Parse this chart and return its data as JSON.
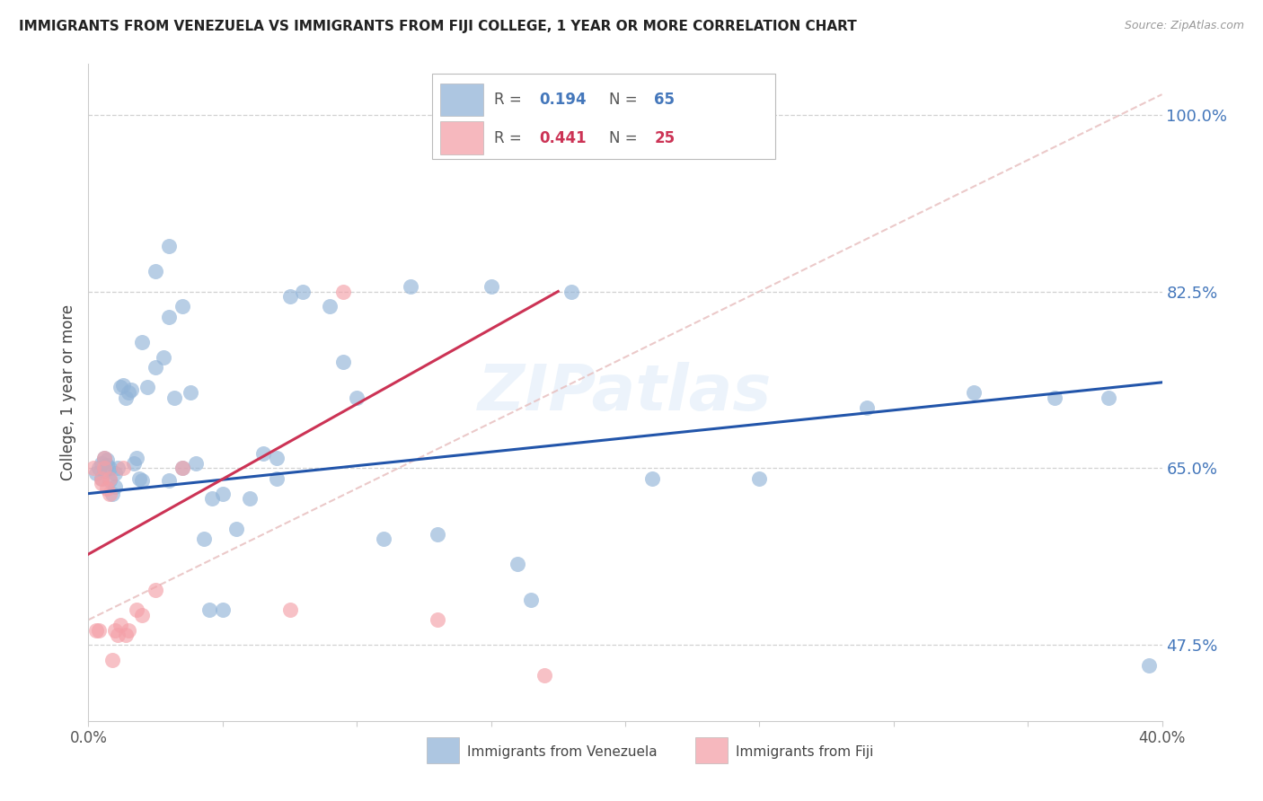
{
  "title": "IMMIGRANTS FROM VENEZUELA VS IMMIGRANTS FROM FIJI COLLEGE, 1 YEAR OR MORE CORRELATION CHART",
  "source": "Source: ZipAtlas.com",
  "ylabel": "College, 1 year or more",
  "ytick_values": [
    0.475,
    0.65,
    0.825,
    1.0
  ],
  "xlim": [
    0.0,
    0.4
  ],
  "ylim": [
    0.4,
    1.05
  ],
  "legend_label_blue": "Immigrants from Venezuela",
  "legend_label_pink": "Immigrants from Fiji",
  "blue_color": "#92B4D8",
  "pink_color": "#F4A0A8",
  "line_blue": "#2255AA",
  "line_pink": "#CC3355",
  "line_diagonal_color": "#E8C0C0",
  "watermark": "ZIPatlas",
  "ven_x": [
    0.003,
    0.004,
    0.005,
    0.005,
    0.006,
    0.006,
    0.007,
    0.007,
    0.008,
    0.008,
    0.009,
    0.01,
    0.01,
    0.011,
    0.012,
    0.013,
    0.014,
    0.015,
    0.016,
    0.017,
    0.018,
    0.019,
    0.02,
    0.022,
    0.025,
    0.028,
    0.03,
    0.032,
    0.035,
    0.038,
    0.04,
    0.043,
    0.046,
    0.05,
    0.055,
    0.06,
    0.065,
    0.07,
    0.075,
    0.08,
    0.09,
    0.1,
    0.11,
    0.12,
    0.13,
    0.15,
    0.18,
    0.21,
    0.25,
    0.29,
    0.33,
    0.36,
    0.38,
    0.395,
    0.16,
    0.165,
    0.02,
    0.03,
    0.045,
    0.025,
    0.03,
    0.035,
    0.05,
    0.07,
    0.095
  ],
  "ven_y": [
    0.645,
    0.65,
    0.64,
    0.655,
    0.648,
    0.66,
    0.653,
    0.658,
    0.65,
    0.638,
    0.625,
    0.632,
    0.645,
    0.65,
    0.73,
    0.732,
    0.72,
    0.725,
    0.728,
    0.655,
    0.66,
    0.64,
    0.638,
    0.73,
    0.75,
    0.76,
    0.638,
    0.72,
    0.65,
    0.725,
    0.655,
    0.58,
    0.62,
    0.625,
    0.59,
    0.62,
    0.665,
    0.66,
    0.82,
    0.825,
    0.81,
    0.72,
    0.58,
    0.83,
    0.585,
    0.83,
    0.825,
    0.64,
    0.64,
    0.71,
    0.725,
    0.72,
    0.72,
    0.455,
    0.555,
    0.52,
    0.775,
    0.8,
    0.51,
    0.845,
    0.87,
    0.81,
    0.51,
    0.64,
    0.755
  ],
  "fiji_x": [
    0.002,
    0.003,
    0.004,
    0.005,
    0.005,
    0.006,
    0.006,
    0.007,
    0.008,
    0.008,
    0.009,
    0.01,
    0.011,
    0.012,
    0.013,
    0.014,
    0.015,
    0.018,
    0.02,
    0.025,
    0.035,
    0.075,
    0.095,
    0.13,
    0.17
  ],
  "fiji_y": [
    0.65,
    0.49,
    0.49,
    0.64,
    0.635,
    0.65,
    0.66,
    0.63,
    0.625,
    0.64,
    0.46,
    0.49,
    0.485,
    0.495,
    0.65,
    0.485,
    0.49,
    0.51,
    0.505,
    0.53,
    0.65,
    0.51,
    0.825,
    0.5,
    0.445
  ]
}
